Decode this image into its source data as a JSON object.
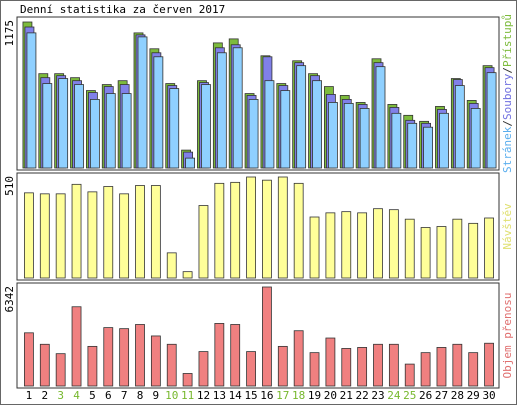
{
  "chart_data": [
    {
      "type": "bar",
      "title": "Denní statistika za červen 2017",
      "ylim": [
        0,
        1175
      ],
      "legend_separator": "/",
      "series": [
        {
          "name": "Stránek",
          "color": "#8fd0ff",
          "label_color": "#5aaeee",
          "values": [
            1080,
            675,
            715,
            667,
            548,
            595,
            595,
            1048,
            889,
            635,
            79,
            667,
            921,
            961,
            548,
            698,
            619,
            818,
            698,
            524,
            516,
            476,
            810,
            437,
            357,
            326,
            437,
            659,
            476,
            762
          ]
        },
        {
          "name": "Soubory",
          "color": "#8080e8",
          "label_color": "#7070e0",
          "values": [
            1127,
            722,
            738,
            698,
            603,
            651,
            667,
            1064,
            921,
            659,
            127,
            683,
            961,
            985,
            580,
            889,
            659,
            842,
            738,
            588,
            548,
            508,
            842,
            484,
            381,
            357,
            468,
            707,
            516,
            802
          ]
        },
        {
          "name": "Přístupů",
          "color": "#7dbb3c",
          "label_color": "#7dbb3c",
          "values": [
            1167,
            754,
            754,
            722,
            619,
            667,
            698,
            1080,
            953,
            675,
            143,
            698,
            1000,
            1032,
            595,
            897,
            675,
            857,
            754,
            651,
            580,
            524,
            873,
            508,
            421,
            373,
            492,
            715,
            540,
            818
          ]
        }
      ]
    },
    {
      "type": "bar",
      "ylim": [
        0,
        510
      ],
      "series": [
        {
          "name": "Návštěv",
          "color": "#ffff99",
          "label_color": "#e0e070",
          "values": [
            430,
            425,
            425,
            473,
            435,
            462,
            425,
            467,
            467,
            127,
            32,
            366,
            478,
            483,
            510,
            494,
            510,
            478,
            308,
            329,
            335,
            329,
            350,
            345,
            297,
            255,
            260,
            297,
            276,
            303
          ]
        }
      ]
    },
    {
      "type": "bar",
      "ylim": [
        0,
        6342
      ],
      "categories": [
        "1",
        "2",
        "3",
        "4",
        "5",
        "6",
        "7",
        "8",
        "9",
        "10",
        "11",
        "12",
        "13",
        "14",
        "15",
        "16",
        "17",
        "18",
        "19",
        "20",
        "21",
        "22",
        "23",
        "24",
        "25",
        "26",
        "27",
        "28",
        "29",
        "30"
      ],
      "weekends": [
        "3",
        "4",
        "10",
        "11",
        "17",
        "18",
        "24",
        "25"
      ],
      "weekend_color": "#77b82e",
      "series": [
        {
          "name": "Objem přenosu",
          "color": "#f08080",
          "label_color": "#e07070",
          "values": [
            3407,
            2672,
            2071,
            5077,
            2538,
            3741,
            3674,
            3941,
            3206,
            2672,
            802,
            2204,
            4008,
            3941,
            2204,
            6342,
            2538,
            3541,
            2137,
            3073,
            2405,
            2471,
            2672,
            2672,
            1403,
            2137,
            2471,
            2672,
            2137,
            2739
          ]
        }
      ]
    }
  ]
}
